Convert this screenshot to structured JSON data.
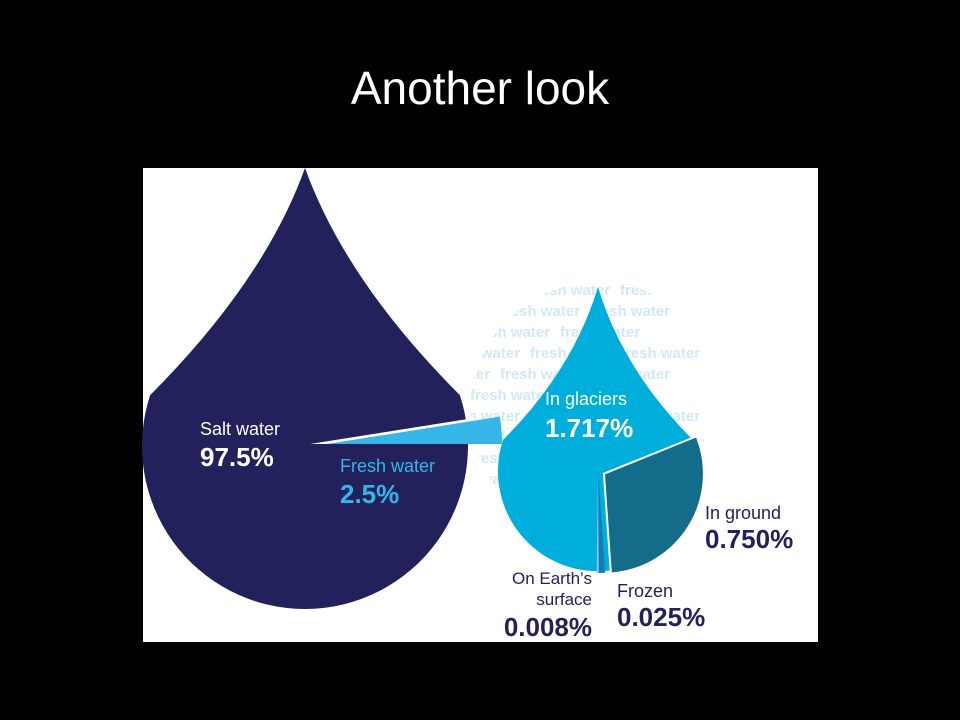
{
  "slide": {
    "title": "Another look"
  },
  "watermark": "fresh water",
  "chart_data": [
    {
      "type": "pie",
      "shape": "drop",
      "categories": [
        "Salt water",
        "Fresh water"
      ],
      "values": [
        97.5,
        2.5
      ],
      "value_labels": [
        "97.5%",
        "2.5%"
      ],
      "colors": [
        "#23215c",
        "#35b6e6"
      ]
    },
    {
      "type": "pie",
      "shape": "drop",
      "categories": [
        "In glaciers",
        "In ground",
        "Frozen",
        "On Earth’s surface"
      ],
      "values": [
        1.717,
        0.75,
        0.025,
        0.008
      ],
      "value_labels": [
        "1.717%",
        "0.750%",
        "0.025%",
        "0.008%"
      ],
      "colors": [
        "#00aedb",
        "#146c8b",
        "#1b78b5",
        "#7fd3ee"
      ]
    }
  ]
}
